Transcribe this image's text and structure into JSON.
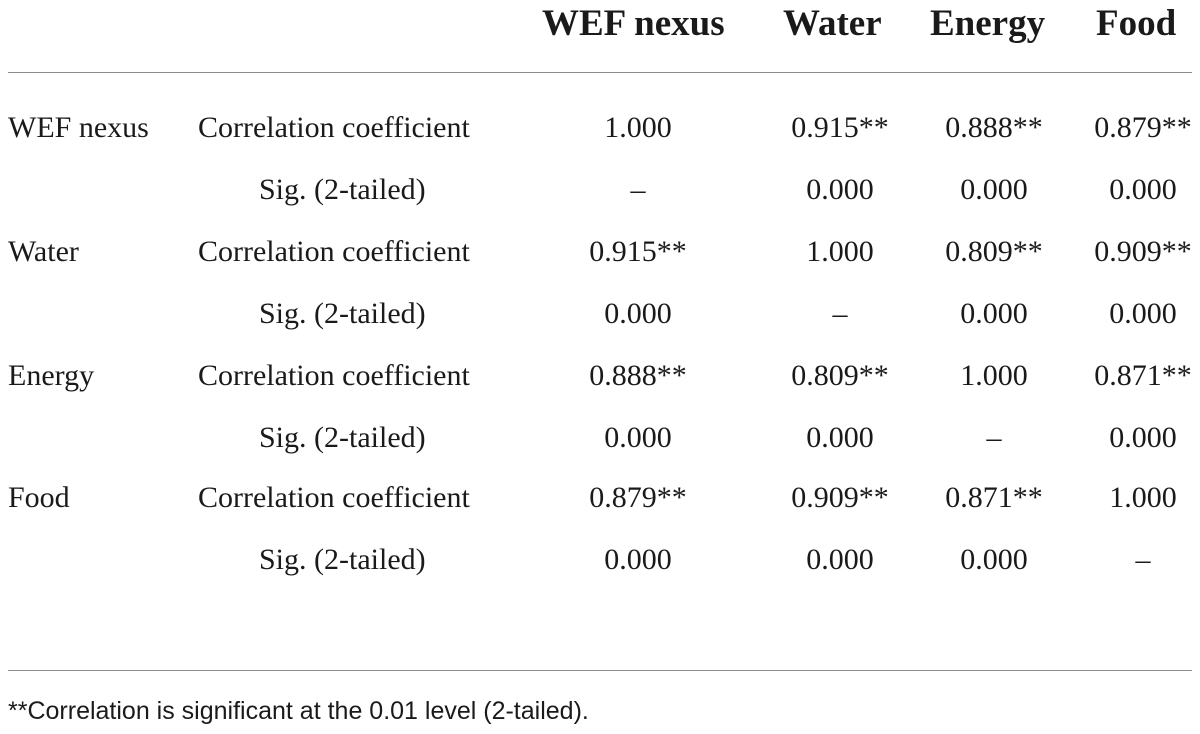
{
  "table": {
    "columns": [
      "WEF nexus",
      "Water",
      "Energy",
      "Food"
    ],
    "rows": [
      {
        "variable": "WEF nexus",
        "stats": [
          {
            "label": "Correlation coefficient",
            "values": [
              "1.000",
              "0.915**",
              "0.888**",
              "0.879**"
            ]
          },
          {
            "label": "Sig. (2-tailed)",
            "values": [
              "–",
              "0.000",
              "0.000",
              "0.000"
            ]
          }
        ]
      },
      {
        "variable": "Water",
        "stats": [
          {
            "label": "Correlation coefficient",
            "values": [
              "0.915**",
              "1.000",
              "0.809**",
              "0.909**"
            ]
          },
          {
            "label": "Sig. (2-tailed)",
            "values": [
              "0.000",
              "–",
              "0.000",
              "0.000"
            ]
          }
        ]
      },
      {
        "variable": "Energy",
        "stats": [
          {
            "label": "Correlation coefficient",
            "values": [
              "0.888**",
              "0.809**",
              "1.000",
              "0.871**"
            ]
          },
          {
            "label": "Sig. (2-tailed)",
            "values": [
              "0.000",
              "0.000",
              "–",
              "0.000"
            ]
          }
        ]
      },
      {
        "variable": "Food",
        "stats": [
          {
            "label": "Correlation coefficient",
            "values": [
              "0.879**",
              "0.909**",
              "0.871**",
              "1.000"
            ]
          },
          {
            "label": "Sig. (2-tailed)",
            "values": [
              "0.000",
              "0.000",
              "0.000",
              "–"
            ]
          }
        ]
      }
    ],
    "footnote": "**Correlation is significant at the 0.01 level (2-tailed)."
  }
}
